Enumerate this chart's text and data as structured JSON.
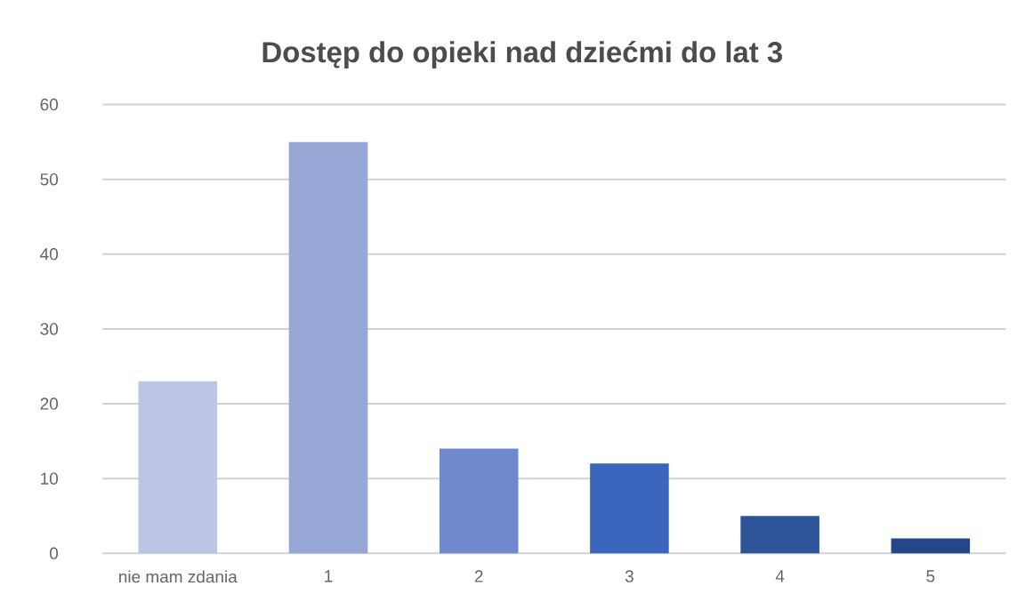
{
  "chart_data": {
    "type": "bar",
    "title": "Dostęp do opieki nad dziećmi do lat 3",
    "categories": [
      "nie mam zdania",
      "1",
      "2",
      "3",
      "4",
      "5"
    ],
    "values": [
      23,
      55,
      14,
      12,
      5,
      2
    ],
    "colors": [
      "#bcc5e3",
      "#98a8d6",
      "#6f89cf",
      "#3a67bd",
      "#2f5599",
      "#24478a"
    ],
    "ylim": [
      0,
      60
    ],
    "yticks": [
      0,
      10,
      20,
      30,
      40,
      50,
      60
    ],
    "grid": "y"
  }
}
